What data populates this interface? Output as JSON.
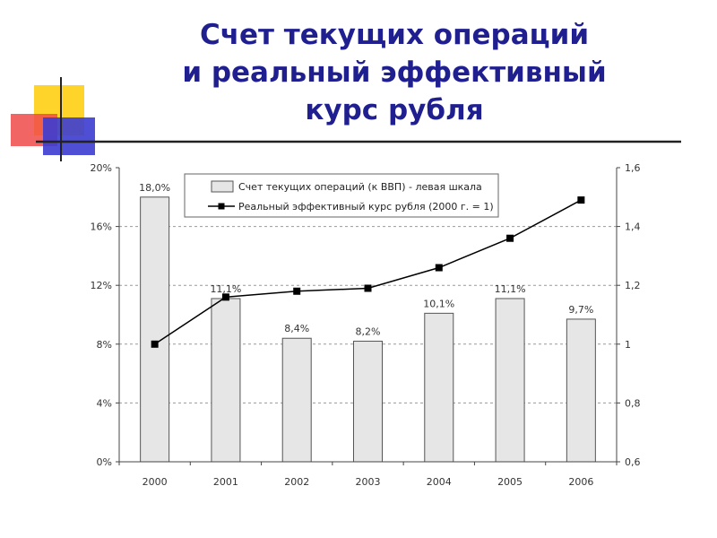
{
  "slide": {
    "title_lines": [
      "Счет текущих операций",
      "и реальный эффективный",
      "курс рубля"
    ]
  },
  "chart_data": {
    "type": "bar",
    "categories": [
      "2000",
      "2001",
      "2002",
      "2003",
      "2004",
      "2005",
      "2006"
    ],
    "series": [
      {
        "name": "Счет текущих операций (к ВВП) - левая шкала",
        "type": "bar",
        "axis": "left",
        "values": [
          18.0,
          11.1,
          8.4,
          8.2,
          10.1,
          11.1,
          9.7
        ],
        "data_labels": [
          "18,0%",
          "11,1%",
          "8,4%",
          "8,2%",
          "10,1%",
          "11,1%",
          "9,7%"
        ]
      },
      {
        "name": "Реальный эффективный курс рубля (2000 г. = 1)",
        "type": "line",
        "axis": "right",
        "values": [
          1.0,
          1.16,
          1.18,
          1.19,
          1.26,
          1.36,
          1.49
        ]
      }
    ],
    "left_axis": {
      "ylim": [
        0,
        20
      ],
      "ticks": [
        0,
        4,
        8,
        12,
        16,
        20
      ],
      "tick_labels": [
        "0%",
        "4%",
        "8%",
        "12%",
        "16%",
        "20%"
      ]
    },
    "right_axis": {
      "ylim": [
        0.6,
        1.6
      ],
      "ticks": [
        0.6,
        0.8,
        1.0,
        1.2,
        1.4,
        1.6
      ],
      "tick_labels": [
        "0,6",
        "0,8",
        "1",
        "1,2",
        "1,4",
        "1,6"
      ]
    },
    "grid": "horizontal dashed",
    "legend_position": "top",
    "colors": {
      "bar_fill": "#e6e6e6",
      "bar_stroke": "#555555",
      "line": "#000000",
      "grid": "#999999",
      "title": "#1f1f8f"
    }
  }
}
